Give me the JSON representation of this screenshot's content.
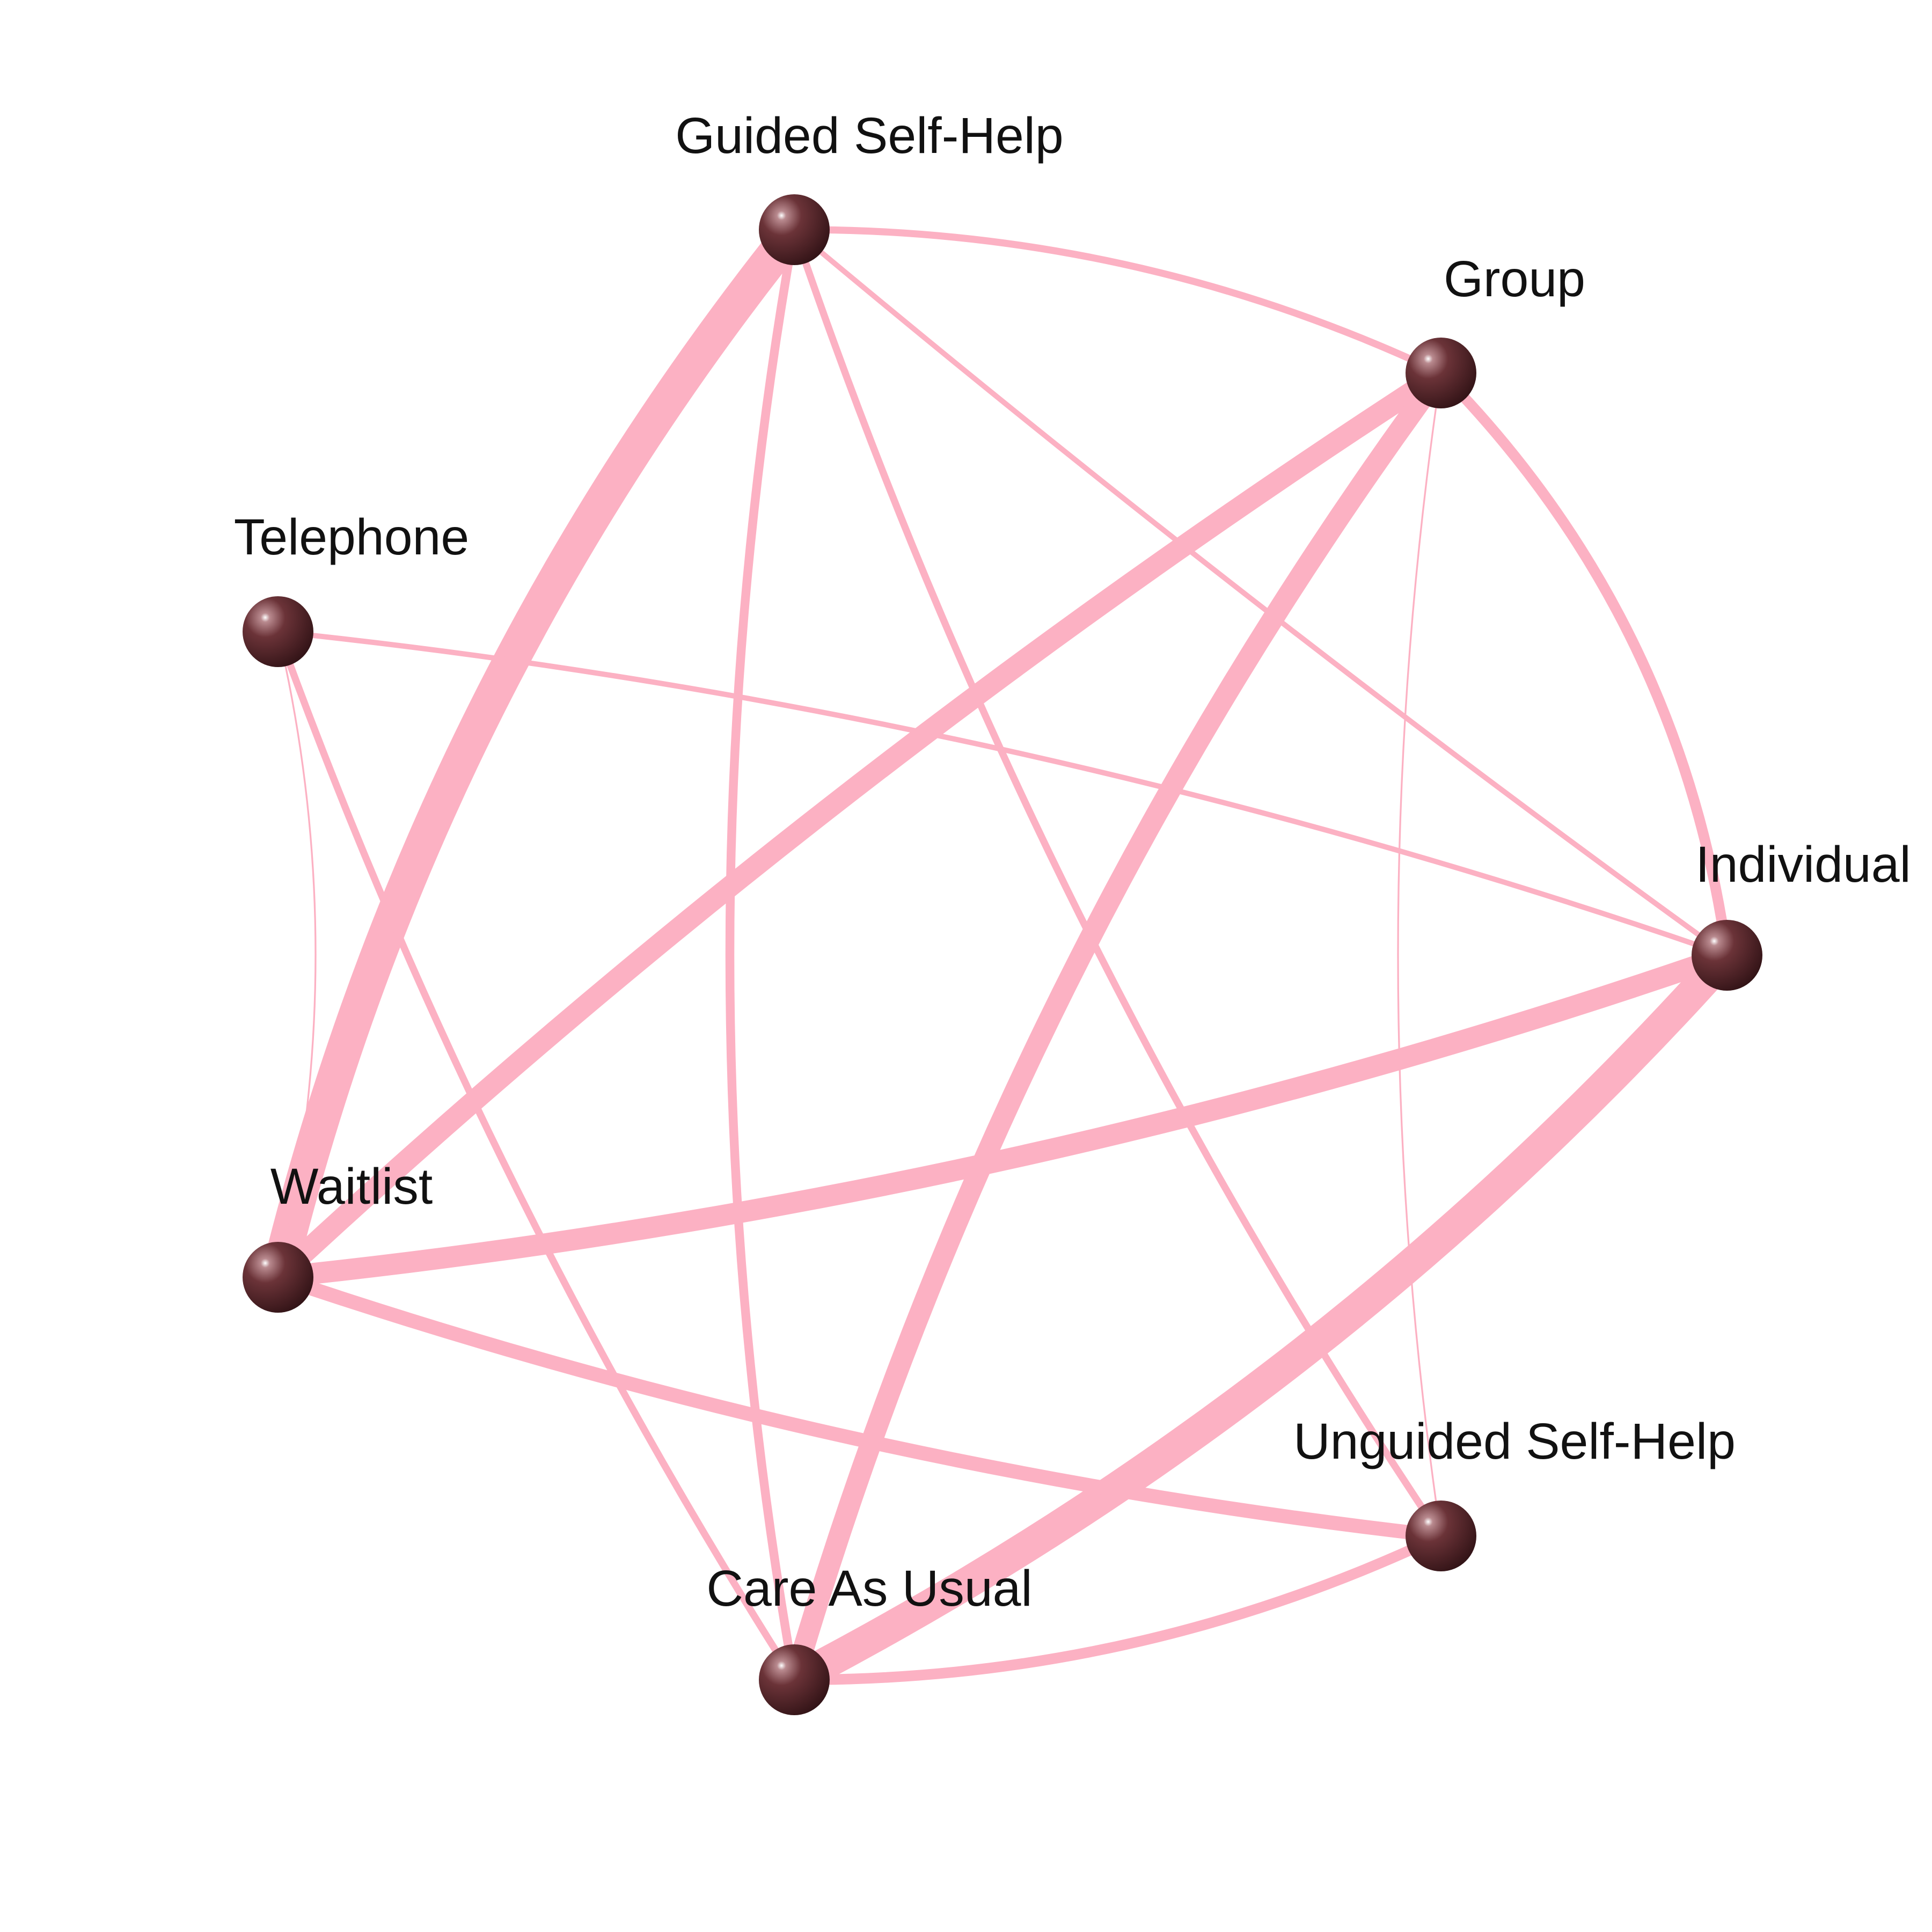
{
  "diagram": {
    "type": "network",
    "colors": {
      "edge": "#fcb1c3",
      "node": "#4a1f24",
      "node_highlight": "#ffffff",
      "label": "#111111",
      "background": "#ffffff"
    },
    "nodes": [
      {
        "id": "guided",
        "label": "Guided Self-Help"
      },
      {
        "id": "group",
        "label": "Group"
      },
      {
        "id": "telephone",
        "label": "Telephone"
      },
      {
        "id": "individual",
        "label": "Individual"
      },
      {
        "id": "waitlist",
        "label": "Waitlist"
      },
      {
        "id": "unguided",
        "label": "Unguided Self-Help"
      },
      {
        "id": "cau",
        "label": "Care As Usual"
      }
    ],
    "edges": [
      {
        "from": "guided",
        "to": "waitlist",
        "weight": 10
      },
      {
        "from": "guided",
        "to": "group",
        "weight": 2
      },
      {
        "from": "guided",
        "to": "individual",
        "weight": 1.5
      },
      {
        "from": "guided",
        "to": "unguided",
        "weight": 2
      },
      {
        "from": "guided",
        "to": "cau",
        "weight": 2.5
      },
      {
        "from": "group",
        "to": "waitlist",
        "weight": 6
      },
      {
        "from": "group",
        "to": "cau",
        "weight": 6
      },
      {
        "from": "group",
        "to": "individual",
        "weight": 3
      },
      {
        "from": "group",
        "to": "unguided",
        "weight": 0.5
      },
      {
        "from": "telephone",
        "to": "individual",
        "weight": 1.5
      },
      {
        "from": "telephone",
        "to": "waitlist",
        "weight": 0.5
      },
      {
        "from": "telephone",
        "to": "cau",
        "weight": 2
      },
      {
        "from": "individual",
        "to": "waitlist",
        "weight": 6
      },
      {
        "from": "individual",
        "to": "cau",
        "weight": 9
      },
      {
        "from": "waitlist",
        "to": "unguided",
        "weight": 4
      },
      {
        "from": "unguided",
        "to": "cau",
        "weight": 3
      }
    ]
  }
}
